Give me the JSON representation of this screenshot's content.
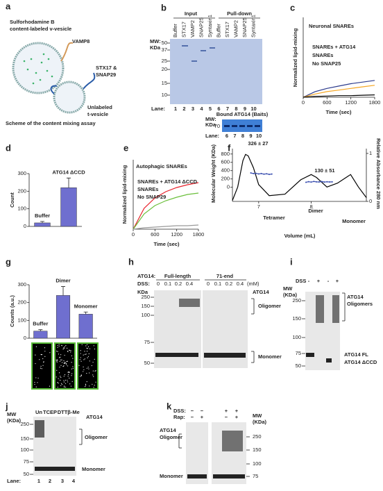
{
  "chart_data": [
    {
      "type": "line",
      "panel": "c",
      "title": "Neuronal SNAREs",
      "xlabel": "Time (sec)",
      "ylabel": "Normalized lipid-mixing",
      "x": [
        0,
        300,
        600,
        900,
        1200,
        1500,
        1800
      ],
      "xlim": [
        0,
        1800
      ],
      "xticks": [
        0,
        600,
        1200,
        1800
      ],
      "ylim": [
        0,
        1
      ],
      "series": [
        {
          "name": "SNAREs + ATG14",
          "color": "#2b3a8c",
          "values": [
            0,
            0.07,
            0.11,
            0.14,
            0.17,
            0.19,
            0.21
          ]
        },
        {
          "name": "SNAREs",
          "color": "#f5a623",
          "values": [
            0,
            0.04,
            0.07,
            0.09,
            0.11,
            0.13,
            0.15
          ]
        },
        {
          "name": "No SNAP25",
          "color": "#000000",
          "values": [
            0,
            0.01,
            0.015,
            0.02,
            0.02,
            0.025,
            0.03
          ]
        }
      ]
    },
    {
      "type": "bar",
      "panel": "d",
      "ylabel": "Count",
      "categories": [
        "Buffer",
        "ATG14 ΔCCD"
      ],
      "values": [
        20,
        220
      ],
      "errors": [
        8,
        55
      ],
      "color": "#6f6fcf",
      "ylim": [
        0,
        300
      ],
      "yticks": [
        0,
        100,
        200,
        300
      ]
    },
    {
      "type": "line",
      "panel": "e",
      "title": "Autophagic SNAREs",
      "xlabel": "Time (sec)",
      "ylabel": "Normalized lipid-mixing",
      "x": [
        0,
        300,
        600,
        900,
        1200,
        1500,
        1800
      ],
      "xlim": [
        0,
        1800
      ],
      "xticks": [
        0,
        600,
        1200,
        1800
      ],
      "ylim": [
        0,
        1
      ],
      "series": [
        {
          "name": "SNAREs + ATG14 ΔCCD",
          "color": "#e8202a",
          "values": [
            0,
            0.3,
            0.45,
            0.54,
            0.6,
            0.64,
            0.67
          ]
        },
        {
          "name": "SNAREs",
          "color": "#6abf3a",
          "values": [
            0,
            0.22,
            0.34,
            0.41,
            0.46,
            0.5,
            0.52
          ]
        },
        {
          "name": "No SNAP29",
          "color": "#999999",
          "values": [
            0,
            0.02,
            0.03,
            0.04,
            0.05,
            0.05,
            0.06
          ]
        }
      ]
    },
    {
      "type": "line",
      "panel": "f",
      "xlabel": "Volume (mL)",
      "ylabel": "Molecular Weight (KDa)",
      "y2label": "Relative Absorbance 280 nm",
      "xlim": [
        6.5,
        9.05
      ],
      "xticks": [
        7,
        8
      ],
      "ylim": [
        -340,
        930
      ],
      "yticks": [
        0,
        200,
        400,
        600,
        800
      ],
      "y2lim": [
        0,
        1.1
      ],
      "y2ticks": [
        0,
        1
      ],
      "annotations": [
        "326 ± 27",
        "130 ± 51",
        "Tetramer",
        "Dimer",
        "Monomer"
      ],
      "series": [
        {
          "color": "#000000",
          "axis": "y2",
          "x": [
            6.5,
            6.6,
            6.7,
            6.75,
            6.8,
            6.9,
            7.0,
            7.2,
            7.5,
            7.8,
            8.0,
            8.1,
            8.3,
            8.5,
            8.75,
            8.9,
            9.05
          ],
          "values": [
            0.02,
            0.3,
            0.85,
            0.98,
            0.95,
            0.7,
            0.35,
            0.12,
            0.15,
            0.45,
            0.56,
            0.5,
            0.3,
            0.38,
            0.56,
            0.3,
            0.08
          ]
        },
        {
          "color": "#3a4fb0",
          "markers": true,
          "x": [
            6.85,
            6.9,
            6.95,
            7.0,
            7.05,
            7.1,
            7.15,
            7.2,
            7.25,
            7.3,
            7.9,
            7.95,
            8.0,
            8.05,
            8.1,
            8.15,
            8.2,
            8.25,
            8.3,
            8.35,
            8.4
          ],
          "values": [
            345,
            330,
            335,
            320,
            330,
            315,
            325,
            310,
            318,
            null,
            120,
            135,
            125,
            140,
            130,
            128,
            138,
            126,
            132,
            128,
            130
          ]
        }
      ]
    },
    {
      "type": "bar",
      "panel": "g",
      "ylabel": "Counts (a.u.)",
      "categories": [
        "Buffer",
        "Dimer",
        "Monomer"
      ],
      "values": [
        40,
        240,
        135
      ],
      "errors": [
        8,
        50,
        12
      ],
      "color": "#6f6fcf",
      "ylim": [
        0,
        300
      ],
      "yticks": [
        0,
        100,
        200,
        300
      ]
    }
  ],
  "panels": {
    "a": {
      "letter": "a",
      "v_vesicle": [
        "Sulforhodamine B",
        "content-labeled v-vesicle"
      ],
      "vamp8": "VAMP8",
      "stx": [
        "STX17 &",
        "SNAP29"
      ],
      "t_vesicle": [
        "Unlabeled",
        "t-vesicle"
      ],
      "caption": "Scheme of the content mixing assay"
    },
    "b": {
      "letter": "b",
      "input": "Input",
      "pulldown": "Pull-down",
      "mw": [
        "MW:",
        "KDa"
      ],
      "mw_ticks": [
        "50",
        "37",
        "25",
        "20",
        "15",
        "10"
      ],
      "columns": [
        "Buffer",
        "STX17",
        "VAMP2",
        "SNAP25",
        "Syntaxin1",
        "Buffer",
        "STX17",
        "VAMP2",
        "SNAP25",
        "Syntaxin1"
      ],
      "lane": "Lane:",
      "lanes": [
        "1",
        "2",
        "3",
        "4",
        "5",
        "6",
        "7",
        "8",
        "9",
        "10"
      ],
      "bound": "Bound ATG14 (Baits)",
      "mw2": [
        "MW:",
        "KDa"
      ],
      "mw2_tick": "70",
      "lane2": "Lane:",
      "lanes2": [
        "6",
        "7",
        "8",
        "9",
        "10"
      ]
    },
    "h": {
      "letter": "h",
      "atg14": "ATG14:",
      "full": "Full-length",
      "end": "71-end",
      "dss": "DSS:",
      "doses": [
        "0",
        "0.1",
        "0.2",
        "0.4",
        "0",
        "0.1",
        "0.2",
        "0.4"
      ],
      "unit": "(mM)",
      "kda": "KDa",
      "ticks": [
        "250",
        "150",
        "100",
        "75",
        "50"
      ],
      "protein": "ATG14",
      "oligomer": "Oligomer",
      "monomer": "Monomer"
    },
    "i": {
      "letter": "i",
      "dss": "DSS",
      "signs": [
        "-",
        "+",
        "-",
        "+"
      ],
      "mw": [
        "MW",
        "(KDa)"
      ],
      "ticks": [
        "250",
        "150",
        "100",
        "75",
        "50"
      ],
      "oligomers": [
        "ATG14",
        "Oligomers"
      ],
      "fl": "ATG14 FL",
      "dccd": "ATG14 ΔCCD"
    },
    "j": {
      "letter": "j",
      "mw": [
        "MW",
        "(KDa)"
      ],
      "header": [
        "Un",
        "TCEP",
        "DTT",
        "β-Me"
      ],
      "protein": "ATG14",
      "ticks": [
        "250",
        "150",
        "100",
        "75",
        "50"
      ],
      "oligomer": "Oligomer",
      "monomer": "Monomer",
      "lane": "Lane:",
      "lanes": [
        "1",
        "2",
        "3",
        "4"
      ]
    },
    "k": {
      "letter": "k",
      "dss": "DSS:",
      "dss_signs": [
        "−",
        "−",
        "+",
        "+"
      ],
      "rap": "Rap:",
      "rap_signs": [
        "−",
        "+",
        "−",
        "+"
      ],
      "oligomer": [
        "ATG14",
        "Oligomer"
      ],
      "monomer": "Monomer",
      "mw": [
        "MW",
        "(KDa)"
      ],
      "ticks": [
        "250",
        "150",
        "100",
        "75"
      ]
    }
  }
}
